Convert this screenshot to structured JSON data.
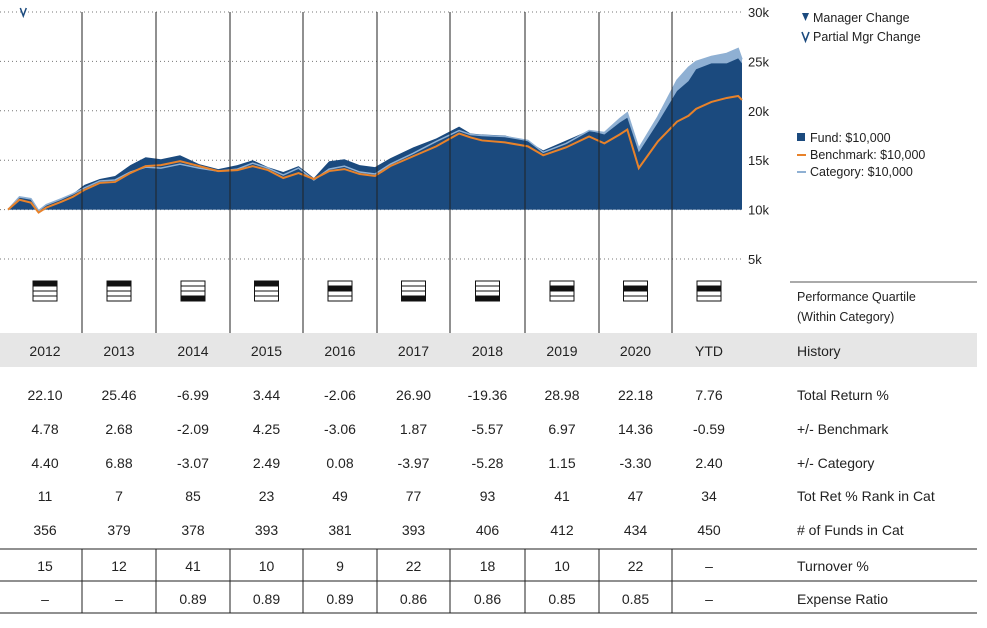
{
  "legend": {
    "manager_change": "Manager Change",
    "partial_mgr_change": "Partial Mgr Change",
    "fund": "Fund: $10,000",
    "benchmark": "Benchmark: $10,000",
    "category": "Category: $10,000"
  },
  "colors": {
    "fund": "#1b4a7e",
    "benchmark": "#e8822a",
    "category": "#8fb0d3",
    "marker": "#1b4a7e"
  },
  "quartile_label": [
    "Performance Quartile",
    "(Within Category)"
  ],
  "quartiles": [
    1,
    1,
    4,
    1,
    2,
    4,
    4,
    2,
    2,
    2
  ],
  "history": {
    "label": "History",
    "years": [
      "2012",
      "2013",
      "2014",
      "2015",
      "2016",
      "2017",
      "2018",
      "2019",
      "2020",
      "YTD"
    ]
  },
  "table": {
    "rows": [
      {
        "label": "Total Return %",
        "values": [
          "22.10",
          "25.46",
          "-6.99",
          "3.44",
          "-2.06",
          "26.90",
          "-19.36",
          "28.98",
          "22.18",
          "7.76"
        ]
      },
      {
        "label": "+/- Benchmark",
        "values": [
          "4.78",
          "2.68",
          "-2.09",
          "4.25",
          "-3.06",
          "1.87",
          "-5.57",
          "6.97",
          "14.36",
          "-0.59"
        ]
      },
      {
        "label": "+/- Category",
        "values": [
          "4.40",
          "6.88",
          "-3.07",
          "2.49",
          "0.08",
          "-3.97",
          "-5.28",
          "1.15",
          "-3.30",
          "2.40"
        ]
      },
      {
        "label": "Tot Ret % Rank in Cat",
        "values": [
          "11",
          "7",
          "85",
          "23",
          "49",
          "77",
          "93",
          "41",
          "47",
          "34"
        ]
      },
      {
        "label": "# of Funds in Cat",
        "values": [
          "356",
          "379",
          "378",
          "393",
          "381",
          "393",
          "406",
          "412",
          "434",
          "450"
        ]
      }
    ],
    "boxed_rows": [
      {
        "label": "Turnover %",
        "values": [
          "15",
          "12",
          "41",
          "10",
          "9",
          "22",
          "18",
          "10",
          "22",
          "–"
        ]
      },
      {
        "label": "Expense Ratio",
        "values": [
          "–",
          "–",
          "0.89",
          "0.89",
          "0.89",
          "0.86",
          "0.86",
          "0.85",
          "0.85",
          "–"
        ]
      }
    ]
  },
  "chart_data": {
    "type": "area",
    "ylim": [
      5000,
      30000
    ],
    "yticks": [
      5000,
      10000,
      15000,
      20000,
      25000,
      30000
    ],
    "ytick_labels": [
      "5k",
      "10k",
      "15k",
      "20k",
      "25k",
      "30k"
    ],
    "xlim": [
      2012.0,
      2021.6
    ],
    "x": [
      2012.0,
      2012.15,
      2012.3,
      2012.4,
      2012.5,
      2012.7,
      2012.85,
      2013.0,
      2013.2,
      2013.4,
      2013.6,
      2013.8,
      2014.0,
      2014.25,
      2014.5,
      2014.75,
      2015.0,
      2015.2,
      2015.4,
      2015.6,
      2015.8,
      2016.0,
      2016.2,
      2016.4,
      2016.6,
      2016.8,
      2017.0,
      2017.3,
      2017.6,
      2017.9,
      2018.05,
      2018.2,
      2018.5,
      2018.8,
      2019.0,
      2019.3,
      2019.6,
      2019.8,
      2020.0,
      2020.1,
      2020.25,
      2020.5,
      2020.75,
      2020.9,
      2021.0,
      2021.2,
      2021.4,
      2021.55,
      2021.6
    ],
    "series": [
      {
        "name": "Fund: $10,000",
        "values": [
          10000,
          11200,
          11000,
          9900,
          10400,
          11000,
          11600,
          12500,
          13100,
          13400,
          14500,
          15300,
          15100,
          15500,
          14600,
          14100,
          14500,
          15000,
          14300,
          13800,
          14400,
          13200,
          14900,
          15100,
          14500,
          14300,
          15200,
          16300,
          17200,
          18400,
          17700,
          17600,
          17500,
          16900,
          16000,
          17000,
          18000,
          17600,
          18800,
          19300,
          15800,
          18800,
          22000,
          23000,
          24200,
          24800,
          24800,
          25300,
          24800
        ]
      },
      {
        "name": "Benchmark: $10,000",
        "values": [
          10000,
          11000,
          10700,
          9700,
          10200,
          10800,
          11300,
          12000,
          12700,
          12800,
          13700,
          14400,
          14500,
          14900,
          14400,
          13900,
          14000,
          14400,
          14000,
          13200,
          13700,
          13100,
          13900,
          14100,
          13600,
          13400,
          14400,
          15400,
          16400,
          17700,
          17300,
          17000,
          16800,
          16400,
          15500,
          16300,
          17400,
          16700,
          17600,
          18100,
          14200,
          16900,
          18900,
          19500,
          20200,
          20900,
          21300,
          21500,
          21100
        ]
      },
      {
        "name": "Category: $10,000",
        "values": [
          10000,
          11300,
          11100,
          9900,
          10500,
          11100,
          11600,
          12200,
          12900,
          13000,
          13800,
          14300,
          14200,
          14600,
          14200,
          13900,
          14100,
          14700,
          14200,
          13500,
          14200,
          13000,
          14100,
          14400,
          13800,
          13600,
          14600,
          15700,
          16900,
          18000,
          17600,
          17500,
          17400,
          17000,
          15800,
          16700,
          18000,
          17800,
          19200,
          19800,
          16200,
          19400,
          23100,
          24400,
          25000,
          25500,
          25800,
          26300,
          25200
        ]
      }
    ],
    "markers": [
      {
        "type": "partial",
        "x": 2012.2
      }
    ]
  }
}
